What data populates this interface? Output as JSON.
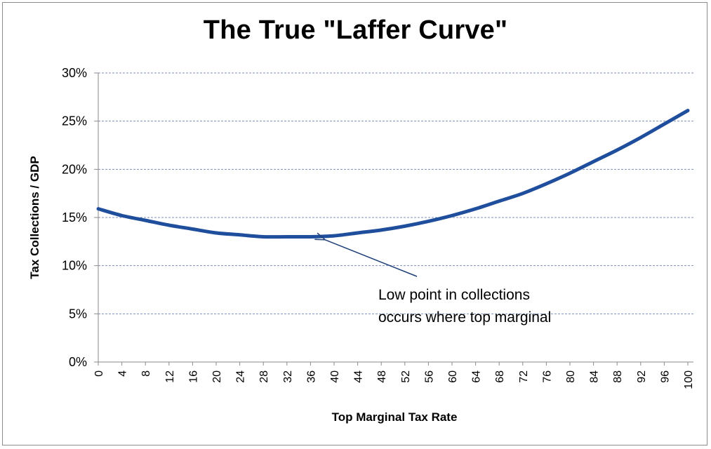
{
  "chart_data": {
    "type": "line",
    "title": "The True \"Laffer Curve\"",
    "xlabel": "Top Marginal  Tax Rate",
    "ylabel": "Tax Collections  / GDP",
    "xlim": [
      0,
      100
    ],
    "ylim": [
      0,
      30
    ],
    "y_ticks": [
      0,
      5,
      10,
      15,
      20,
      25,
      30
    ],
    "y_tick_labels": [
      "0%",
      "5%",
      "10%",
      "15%",
      "20%",
      "25%",
      "30%"
    ],
    "x_tick_labels": [
      "0",
      "4",
      "8",
      "12",
      "16",
      "20",
      "24",
      "28",
      "32",
      "36",
      "40",
      "44",
      "48",
      "52",
      "56",
      "60",
      "64",
      "68",
      "72",
      "76",
      "80",
      "84",
      "88",
      "92",
      "96",
      "100"
    ],
    "grid": "horizontal-dashed",
    "legend": "none",
    "series": [
      {
        "color": "#1f4e9c",
        "x": [
          0,
          4,
          8,
          12,
          16,
          20,
          24,
          28,
          32,
          36,
          40,
          44,
          48,
          52,
          56,
          60,
          64,
          68,
          72,
          76,
          80,
          84,
          88,
          92,
          96,
          100
        ],
        "y": [
          15.9,
          15.2,
          14.7,
          14.2,
          13.8,
          13.4,
          13.2,
          13.0,
          13.0,
          13.0,
          13.1,
          13.4,
          13.7,
          14.1,
          14.6,
          15.2,
          15.9,
          16.7,
          17.5,
          18.5,
          19.6,
          20.8,
          22.0,
          23.3,
          24.7,
          26.1
        ]
      }
    ],
    "annotation": {
      "lines": [
        "Low point in collections",
        "occurs where top marginal"
      ],
      "points_to": {
        "x": 38,
        "y": 12.9
      }
    }
  }
}
